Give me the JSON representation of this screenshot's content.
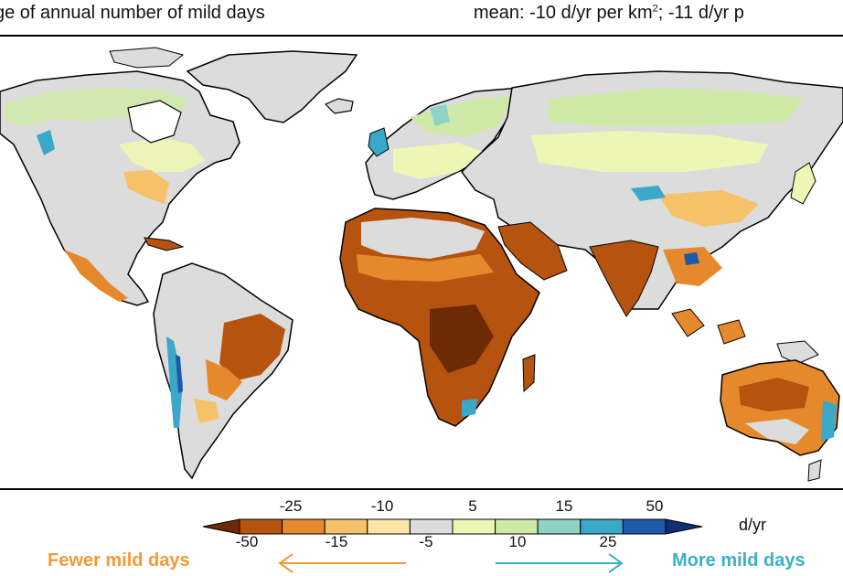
{
  "header": {
    "left_title": "ge of annual number of mild days",
    "right_mean_prefix": "mean: -10 d/yr per km",
    "right_mean_sup": "2",
    "right_mean_suffix": "; -11 d/yr p"
  },
  "map": {
    "type": "choropleth",
    "variable": "change of annual number of mild days",
    "colors": {
      "lt_-50": "#6e2a05",
      "-50_-25": "#b5530f",
      "-25_-15": "#e6892c",
      "-15_-10": "#f5c26a",
      "-10_-5": "#fbe6a6",
      "-5_5": "#dcdcdc",
      "5_10": "#eef6b5",
      "10_15": "#cfeaa6",
      "15_25": "#8fd3c4",
      "25_50": "#3aa8c9",
      "gt_50": "#1f5aa8",
      "extreme": "#0f2f73"
    }
  },
  "colorbar": {
    "unit": "d/yr",
    "top_labels": [
      "-25",
      "-10",
      "5",
      "15",
      "50"
    ],
    "bottom_labels": [
      "-50",
      "-15",
      "-5",
      "10",
      "25"
    ],
    "colors": [
      "#6e2a05",
      "#b5530f",
      "#e6892c",
      "#f5c26a",
      "#fbe6a6",
      "#dcdcdc",
      "#eef6b5",
      "#cfeaa6",
      "#8fd3c4",
      "#3aa8c9",
      "#1f5aa8",
      "#0f2f73"
    ]
  },
  "legend": {
    "fewer_label": "Fewer mild days",
    "more_label": "More mild days",
    "fewer_color": "#f29a3a",
    "more_color": "#3ab1c6"
  }
}
